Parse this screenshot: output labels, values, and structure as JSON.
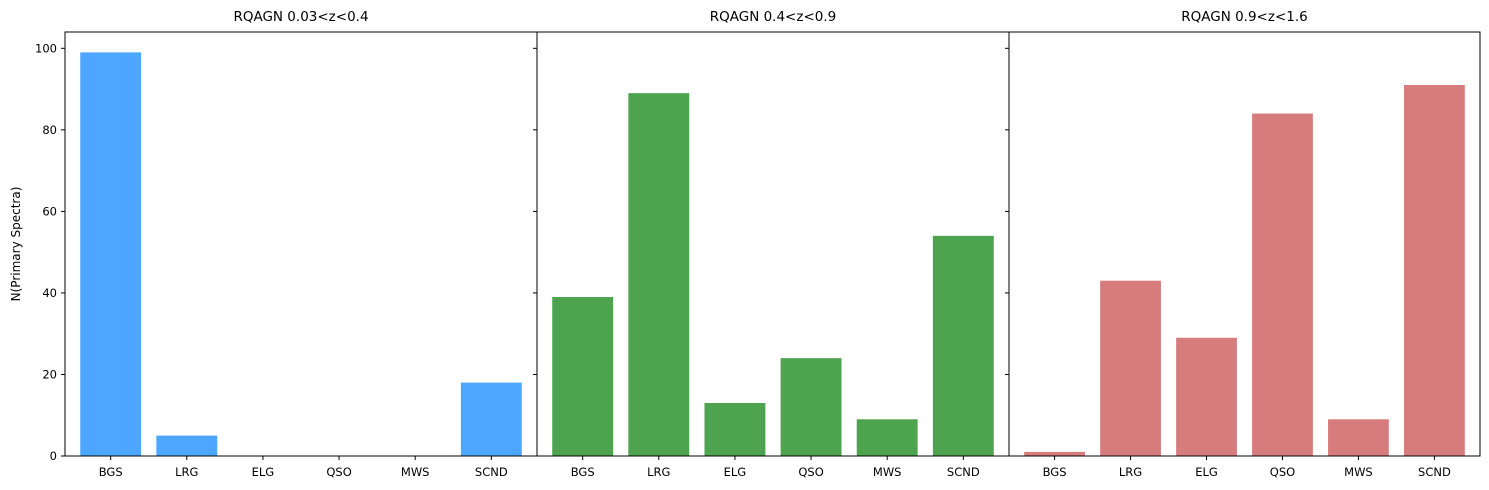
{
  "chart_data": [
    {
      "type": "bar",
      "title": "RQAGN 0.03<z<0.4",
      "ylabel": "N(Primary Spectra)",
      "categories": [
        "BGS",
        "LRG",
        "ELG",
        "QSO",
        "MWS",
        "SCND"
      ],
      "values": [
        99,
        5,
        0,
        0,
        0,
        18
      ],
      "color": "#4da6ff",
      "ylim": [
        0,
        104
      ],
      "yticks": [
        0,
        20,
        40,
        60,
        80,
        100
      ]
    },
    {
      "type": "bar",
      "title": "RQAGN 0.4<z<0.9",
      "categories": [
        "BGS",
        "LRG",
        "ELG",
        "QSO",
        "MWS",
        "SCND"
      ],
      "values": [
        39,
        89,
        13,
        24,
        9,
        54
      ],
      "color": "#4ea34e",
      "ylim": [
        0,
        104
      ],
      "yticks": [
        0,
        20,
        40,
        60,
        80,
        100
      ]
    },
    {
      "type": "bar",
      "title": "RQAGN 0.9<z<1.6",
      "categories": [
        "BGS",
        "LRG",
        "ELG",
        "QSO",
        "MWS",
        "SCND"
      ],
      "values": [
        1,
        43,
        29,
        84,
        9,
        91
      ],
      "color": "#d77c7c",
      "ylim": [
        0,
        104
      ],
      "yticks": [
        0,
        20,
        40,
        60,
        80,
        100
      ]
    }
  ]
}
